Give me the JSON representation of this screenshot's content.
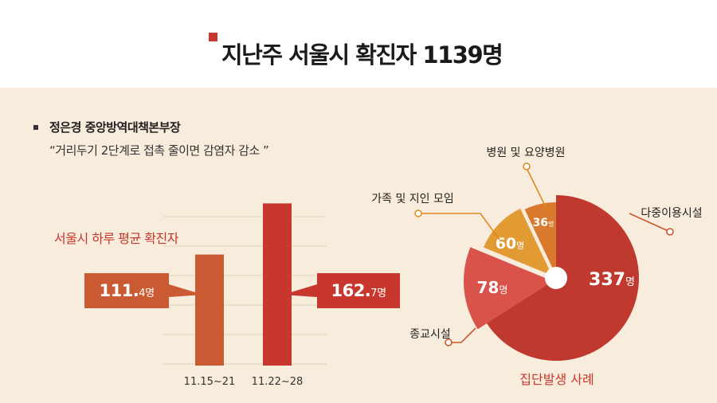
{
  "header": {
    "title": "지난주 서울시 확진자 1139명"
  },
  "quote_block": {
    "speaker": "정은경 중앙방역대책본부장",
    "quote": "“거리두기 2단계로 접촉 줄이면 감염자 감소 ”"
  },
  "chart_data": [
    {
      "type": "bar",
      "title": "서울시 하루 평균 확진자",
      "categories": [
        "11.15~21",
        "11.22~28"
      ],
      "values": [
        111.4,
        162.7
      ],
      "value_labels": [
        {
          "main": "111.",
          "decimal": "4명"
        },
        {
          "main": "162.",
          "decimal": "7명"
        }
      ],
      "unit": "명",
      "colors": [
        "#c95a32",
        "#c8372d"
      ],
      "grid": true,
      "ylim": [
        0,
        175
      ]
    },
    {
      "type": "pie",
      "title": "집단발생 사례",
      "slices": [
        {
          "label": "다중이용시설",
          "value": 337,
          "value_label": "337",
          "color": "#c0392f"
        },
        {
          "label": "종교시설",
          "value": 78,
          "value_label": "78",
          "color": "#d9534a"
        },
        {
          "label": "가족 및 지인 모임",
          "value": 60,
          "value_label": "60",
          "color": "#e29a32"
        },
        {
          "label": "병원 및 요양병원",
          "value": 36,
          "value_label": "36",
          "color": "#d9792e"
        }
      ],
      "unit": "명",
      "colors": {
        "leader": "#c85a2d",
        "leader_alt": "#e08a1e"
      }
    }
  ]
}
